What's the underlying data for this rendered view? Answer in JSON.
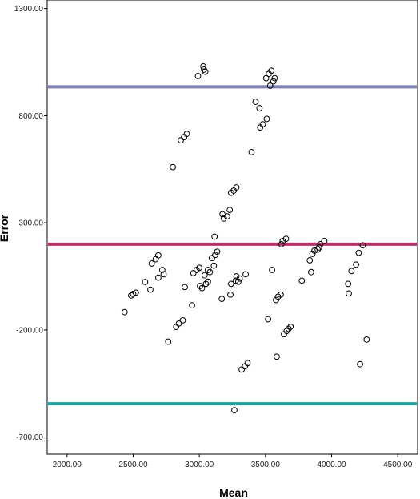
{
  "chart_data": {
    "type": "scatter",
    "title": "",
    "xlabel": "Mean",
    "ylabel": "Error",
    "xlim": [
      1850,
      4650
    ],
    "ylim": [
      -780,
      1340
    ],
    "x_ticks": [
      2000,
      2500,
      3000,
      3500,
      4000,
      4500
    ],
    "x_tick_labels": [
      "2000.00",
      "2500.00",
      "3000.00",
      "3500.00",
      "4000.00",
      "4500.00"
    ],
    "y_ticks": [
      -700,
      -200,
      300,
      800,
      1300
    ],
    "y_tick_labels": [
      "-700.00",
      "-200.00",
      "300.00",
      "800.00",
      "1300.00"
    ],
    "grid": false,
    "reference_lines": [
      {
        "y": 935,
        "color": "#7b7fb2"
      },
      {
        "y": 200,
        "color": "#b5336b"
      },
      {
        "y": -545,
        "color": "#1aa5a2"
      }
    ],
    "marker_color": "#000000",
    "points": [
      {
        "x": 2435,
        "y": -117
      },
      {
        "x": 2485,
        "y": -39
      },
      {
        "x": 2500,
        "y": -32
      },
      {
        "x": 2520,
        "y": -26
      },
      {
        "x": 2590,
        "y": 24
      },
      {
        "x": 2630,
        "y": -12
      },
      {
        "x": 2640,
        "y": 110
      },
      {
        "x": 2670,
        "y": 130
      },
      {
        "x": 2690,
        "y": 148
      },
      {
        "x": 2690,
        "y": 44
      },
      {
        "x": 2720,
        "y": 80
      },
      {
        "x": 2730,
        "y": 60
      },
      {
        "x": 2765,
        "y": -255
      },
      {
        "x": 2800,
        "y": 560
      },
      {
        "x": 2825,
        "y": -186
      },
      {
        "x": 2845,
        "y": -170
      },
      {
        "x": 2860,
        "y": 685
      },
      {
        "x": 2875,
        "y": -155
      },
      {
        "x": 2885,
        "y": 700
      },
      {
        "x": 2890,
        "y": 0
      },
      {
        "x": 2905,
        "y": 715
      },
      {
        "x": 2945,
        "y": -85
      },
      {
        "x": 2955,
        "y": 65
      },
      {
        "x": 2980,
        "y": 80
      },
      {
        "x": 2990,
        "y": 985
      },
      {
        "x": 3000,
        "y": 90
      },
      {
        "x": 3005,
        "y": 5
      },
      {
        "x": 3020,
        "y": -5
      },
      {
        "x": 3030,
        "y": 1030
      },
      {
        "x": 3035,
        "y": 1015
      },
      {
        "x": 3045,
        "y": 1005
      },
      {
        "x": 3040,
        "y": 55
      },
      {
        "x": 3050,
        "y": 15
      },
      {
        "x": 3065,
        "y": 25
      },
      {
        "x": 3065,
        "y": 80
      },
      {
        "x": 3080,
        "y": 70
      },
      {
        "x": 3095,
        "y": 135
      },
      {
        "x": 3110,
        "y": 100
      },
      {
        "x": 3115,
        "y": 235
      },
      {
        "x": 3120,
        "y": 150
      },
      {
        "x": 3135,
        "y": 165
      },
      {
        "x": 3170,
        "y": -55
      },
      {
        "x": 3175,
        "y": 340
      },
      {
        "x": 3185,
        "y": 320
      },
      {
        "x": 3210,
        "y": 330
      },
      {
        "x": 3230,
        "y": 360
      },
      {
        "x": 3235,
        "y": -35
      },
      {
        "x": 3240,
        "y": 440
      },
      {
        "x": 3240,
        "y": 15
      },
      {
        "x": 3260,
        "y": 450
      },
      {
        "x": 3265,
        "y": -575
      },
      {
        "x": 3275,
        "y": 30
      },
      {
        "x": 3280,
        "y": 465
      },
      {
        "x": 3280,
        "y": 50
      },
      {
        "x": 3295,
        "y": 25
      },
      {
        "x": 3305,
        "y": 40
      },
      {
        "x": 3320,
        "y": -385
      },
      {
        "x": 3345,
        "y": -370
      },
      {
        "x": 3350,
        "y": 60
      },
      {
        "x": 3365,
        "y": -355
      },
      {
        "x": 3395,
        "y": 630
      },
      {
        "x": 3425,
        "y": 865
      },
      {
        "x": 3455,
        "y": 835
      },
      {
        "x": 3460,
        "y": 745
      },
      {
        "x": 3480,
        "y": 760
      },
      {
        "x": 3505,
        "y": 975
      },
      {
        "x": 3510,
        "y": 785
      },
      {
        "x": 3520,
        "y": -150
      },
      {
        "x": 3525,
        "y": 995
      },
      {
        "x": 3535,
        "y": 940
      },
      {
        "x": 3545,
        "y": 1010
      },
      {
        "x": 3550,
        "y": 80
      },
      {
        "x": 3560,
        "y": 960
      },
      {
        "x": 3570,
        "y": 975
      },
      {
        "x": 3580,
        "y": -60
      },
      {
        "x": 3585,
        "y": -325
      },
      {
        "x": 3595,
        "y": -45
      },
      {
        "x": 3615,
        "y": -35
      },
      {
        "x": 3620,
        "y": 200
      },
      {
        "x": 3630,
        "y": 215
      },
      {
        "x": 3640,
        "y": -220
      },
      {
        "x": 3655,
        "y": 225
      },
      {
        "x": 3660,
        "y": -205
      },
      {
        "x": 3675,
        "y": -195
      },
      {
        "x": 3690,
        "y": -185
      },
      {
        "x": 3775,
        "y": 30
      },
      {
        "x": 3835,
        "y": 125
      },
      {
        "x": 3845,
        "y": 70
      },
      {
        "x": 3855,
        "y": 155
      },
      {
        "x": 3870,
        "y": 170
      },
      {
        "x": 3895,
        "y": 175
      },
      {
        "x": 3905,
        "y": 185
      },
      {
        "x": 3915,
        "y": 200
      },
      {
        "x": 3945,
        "y": 215
      },
      {
        "x": 4125,
        "y": 15
      },
      {
        "x": 4130,
        "y": -30
      },
      {
        "x": 4150,
        "y": 75
      },
      {
        "x": 4185,
        "y": 105
      },
      {
        "x": 4205,
        "y": 160
      },
      {
        "x": 4215,
        "y": -360
      },
      {
        "x": 4235,
        "y": 195
      },
      {
        "x": 4265,
        "y": -245
      }
    ]
  }
}
